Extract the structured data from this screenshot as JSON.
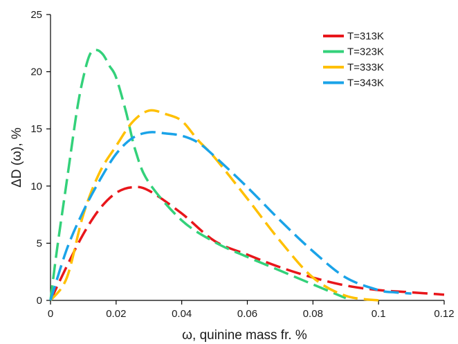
{
  "chart_data": {
    "type": "line",
    "title": "",
    "xlabel": "ω, quinine mass fr. %",
    "ylabel": "ΔD (ω),  %",
    "xlim": [
      0,
      0.12
    ],
    "ylim": [
      0,
      25
    ],
    "xticks": [
      "0",
      "0.02",
      "0.04",
      "0.06",
      "0.08",
      "0.1",
      "0.12"
    ],
    "yticks": [
      "0",
      "5",
      "10",
      "15",
      "20",
      "25"
    ],
    "grid": false,
    "legend_position": "top-right",
    "line_style": "dashed",
    "series": [
      {
        "name": "T=313K",
        "color": "#e8161b",
        "x": [
          0,
          0.005,
          0.01,
          0.015,
          0.02,
          0.025,
          0.03,
          0.04,
          0.05,
          0.06,
          0.07,
          0.08,
          0.09,
          0.1,
          0.11,
          0.12
        ],
        "y": [
          0,
          3.0,
          5.8,
          8.0,
          9.4,
          9.9,
          9.6,
          7.6,
          5.2,
          4.0,
          2.9,
          2.0,
          1.3,
          0.9,
          0.7,
          0.5
        ]
      },
      {
        "name": "T=323K",
        "color": "#33d17a",
        "x": [
          0,
          0.002,
          0.005,
          0.008,
          0.01,
          0.012,
          0.014,
          0.016,
          0.018,
          0.02,
          0.023,
          0.026,
          0.03,
          0.04,
          0.05,
          0.06,
          0.07,
          0.08,
          0.09
        ],
        "y": [
          0,
          4.5,
          10.5,
          16.5,
          19.5,
          21.5,
          21.9,
          21.5,
          20.5,
          19.5,
          16.5,
          13.0,
          10.3,
          7.0,
          5.1,
          3.8,
          2.6,
          1.4,
          0.2
        ]
      },
      {
        "name": "T=333K",
        "color": "#ffc000",
        "x": [
          0,
          0.005,
          0.01,
          0.015,
          0.02,
          0.025,
          0.03,
          0.035,
          0.04,
          0.045,
          0.05,
          0.06,
          0.07,
          0.08,
          0.09,
          0.1
        ],
        "y": [
          0,
          2.0,
          7.5,
          11.2,
          13.5,
          15.6,
          16.6,
          16.3,
          15.7,
          14.0,
          12.5,
          8.9,
          5.2,
          2.0,
          0.4,
          0
        ]
      },
      {
        "name": "T=343K",
        "color": "#1aa3e8",
        "x": [
          0,
          0.005,
          0.01,
          0.015,
          0.02,
          0.025,
          0.03,
          0.035,
          0.04,
          0.045,
          0.05,
          0.06,
          0.07,
          0.08,
          0.09,
          0.1,
          0.105,
          0.11
        ],
        "y": [
          0,
          4.5,
          7.8,
          10.5,
          12.8,
          14.2,
          14.7,
          14.6,
          14.4,
          13.8,
          12.6,
          9.9,
          7.0,
          4.3,
          2.0,
          0.9,
          0.7,
          0.6
        ]
      }
    ]
  }
}
